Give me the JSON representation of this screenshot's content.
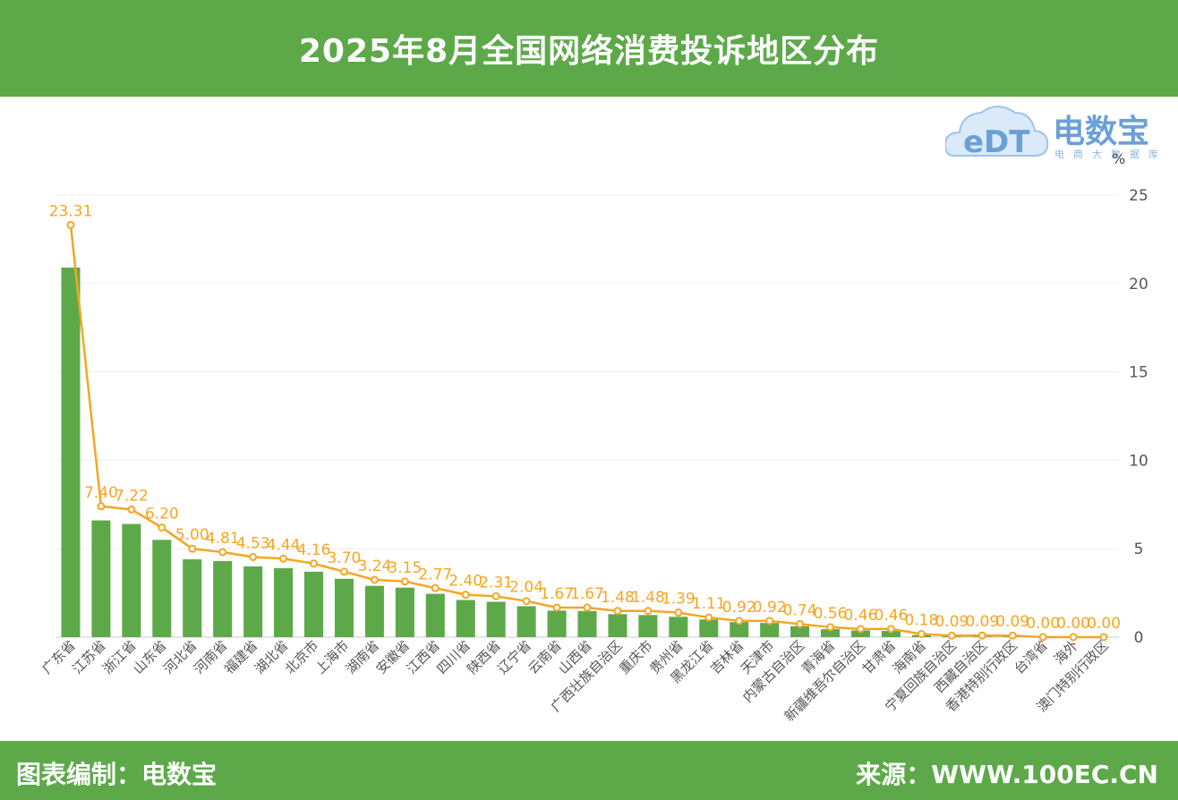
{
  "header": {
    "title": "2025年8月全国网络消费投诉地区分布"
  },
  "footer": {
    "left_text": "图表编制：电数宝",
    "right_text": "来源：WWW.100EC.CN"
  },
  "logo": {
    "brand": "电数宝",
    "badge": "eDT",
    "subtitle": "电商大数据库"
  },
  "colors": {
    "header_bg": "#5da94a",
    "bar": "#5da94a",
    "line": "#f5a623",
    "label": "#f5a623",
    "logo": "#6a9fd8"
  },
  "chart_data": {
    "type": "bar",
    "title": "2025年8月全国网络消费投诉地区分布",
    "ylabel": "%",
    "ylim": [
      0,
      25
    ],
    "yticks": [
      0,
      5,
      10,
      15,
      20,
      25
    ],
    "grid": true,
    "categories": [
      "广东省",
      "江苏省",
      "浙江省",
      "山东省",
      "河北省",
      "河南省",
      "福建省",
      "湖北省",
      "北京市",
      "上海市",
      "湖南省",
      "安徽省",
      "江西省",
      "四川省",
      "陕西省",
      "辽宁省",
      "云南省",
      "山西省",
      "广西壮族自治区",
      "重庆市",
      "贵州省",
      "黑龙江省",
      "吉林省",
      "天津市",
      "内蒙古自治区",
      "青海省",
      "新疆维吾尔自治区",
      "甘肃省",
      "海南省",
      "宁夏回族自治区",
      "西藏自治区",
      "香港特别行政区",
      "台湾省",
      "海外",
      "澳门特别行政区"
    ],
    "series": [
      {
        "type": "bar",
        "values": [
          20.9,
          6.6,
          6.4,
          5.5,
          4.4,
          4.3,
          4.0,
          3.9,
          3.7,
          3.3,
          2.9,
          2.8,
          2.45,
          2.1,
          2.0,
          1.75,
          1.5,
          1.48,
          1.3,
          1.25,
          1.15,
          1.0,
          0.85,
          0.8,
          0.62,
          0.45,
          0.38,
          0.35,
          0.12,
          0.07,
          0.06,
          0.05,
          0.01,
          0.01,
          0.0
        ]
      },
      {
        "type": "line",
        "values": [
          23.31,
          7.4,
          7.22,
          6.2,
          5.0,
          4.81,
          4.53,
          4.44,
          4.16,
          3.7,
          3.24,
          3.15,
          2.77,
          2.4,
          2.31,
          2.04,
          1.67,
          1.67,
          1.48,
          1.48,
          1.39,
          1.11,
          0.92,
          0.92,
          0.74,
          0.56,
          0.46,
          0.46,
          0.18,
          0.09,
          0.09,
          0.09,
          0.0,
          0.0,
          0.0
        ],
        "labels": [
          "23.31",
          "7.40",
          "7.22",
          "6.20",
          "5.00",
          "4.81",
          "4.53",
          "4.44",
          "4.16",
          "3.70",
          "3.24",
          "3.15",
          "2.77",
          "2.40",
          "2.31",
          "2.04",
          "1.67",
          "1.67",
          "1.48",
          "1.48",
          "1.39",
          "1.11",
          "0.92",
          "0.92",
          "0.74",
          "0.56",
          "0.46",
          "0.46",
          "0.18",
          "0.09",
          "0.09",
          "0.09",
          "0.00",
          "0.00",
          "0.00"
        ]
      }
    ]
  }
}
